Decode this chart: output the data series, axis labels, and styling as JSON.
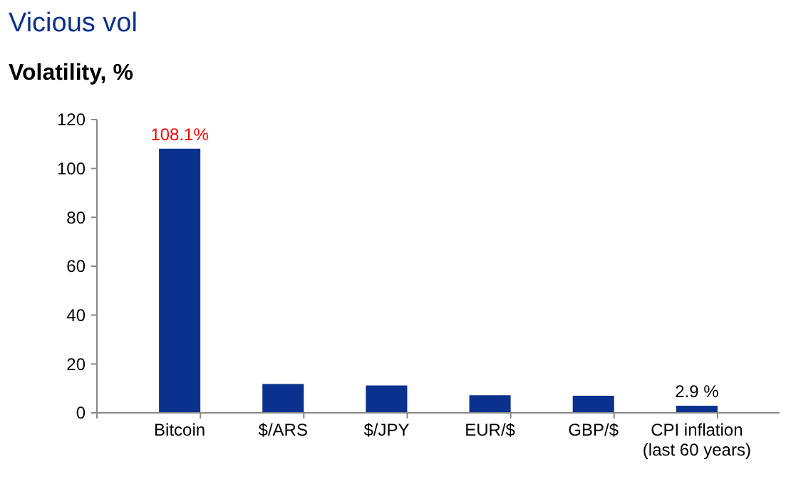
{
  "chart_data": {
    "type": "bar",
    "title": "Vicious vol",
    "ylabel": "Volatility, %",
    "categories": [
      "Bitcoin",
      "$/ARS",
      "$/JPY",
      "EUR/$",
      "GBP/$",
      "CPI inflation\n(last 60 years)"
    ],
    "values": [
      108.1,
      11.8,
      11.2,
      7.2,
      7.0,
      2.9
    ],
    "value_labels": [
      "108.1%",
      null,
      null,
      null,
      null,
      "2.9 %"
    ],
    "color": "#0b318f",
    "ylim": [
      0,
      120
    ],
    "yticks": [
      0,
      20,
      40,
      60,
      80,
      100,
      120
    ],
    "grid": false
  }
}
